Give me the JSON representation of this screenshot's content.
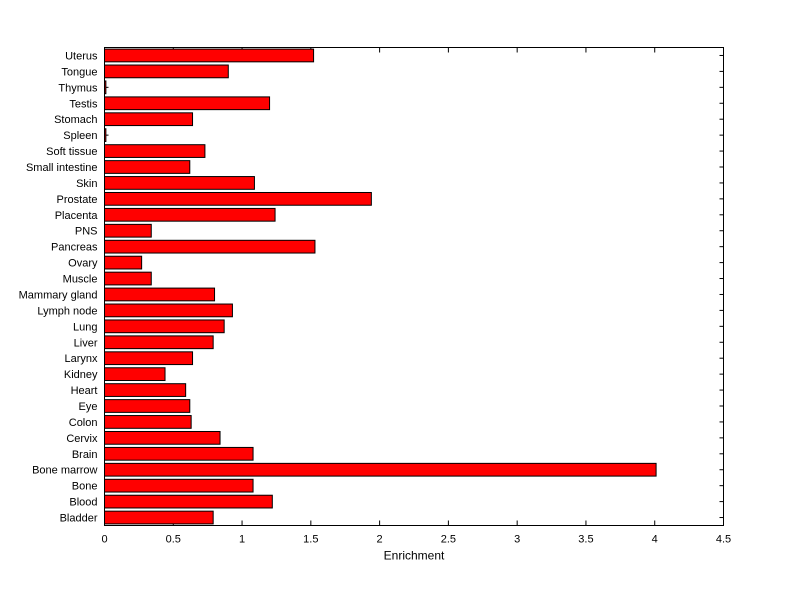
{
  "figure": {
    "background": "#ffffff"
  },
  "chart_data": {
    "type": "bar",
    "orientation": "horizontal",
    "title": "",
    "xlabel": "Enrichment",
    "ylabel": "",
    "xlim": [
      0,
      4.5
    ],
    "xticks": [
      0,
      0.5,
      1,
      1.5,
      2,
      2.5,
      3,
      3.5,
      4,
      4.5
    ],
    "xtick_labels": [
      "0",
      "0.5",
      "1",
      "1.5",
      "2",
      "2.5",
      "3",
      "3.5",
      "4",
      "4.5"
    ],
    "grid": false,
    "legend": null,
    "bar_color": "#ff0000",
    "bar_edge_color": "#000000",
    "axis_color": "#000000",
    "categories": [
      "Uterus",
      "Tongue",
      "Thymus",
      "Testis",
      "Stomach",
      "Spleen",
      "Soft tissue",
      "Small intestine",
      "Skin",
      "Prostate",
      "Placenta",
      "PNS",
      "Pancreas",
      "Ovary",
      "Muscle",
      "Mammary gland",
      "Lymph node",
      "Lung",
      "Liver",
      "Larynx",
      "Kidney",
      "Heart",
      "Eye",
      "Colon",
      "Cervix",
      "Brain",
      "Bone marrow",
      "Bone",
      "Blood",
      "Bladder"
    ],
    "values": [
      1.52,
      0.9,
      0.01,
      1.2,
      0.64,
      0.01,
      0.73,
      0.62,
      1.09,
      1.94,
      1.24,
      0.34,
      1.53,
      0.27,
      0.34,
      0.8,
      0.93,
      0.87,
      0.79,
      0.64,
      0.44,
      0.59,
      0.62,
      0.63,
      0.84,
      1.08,
      4.01,
      1.08,
      1.22,
      0.79
    ]
  }
}
